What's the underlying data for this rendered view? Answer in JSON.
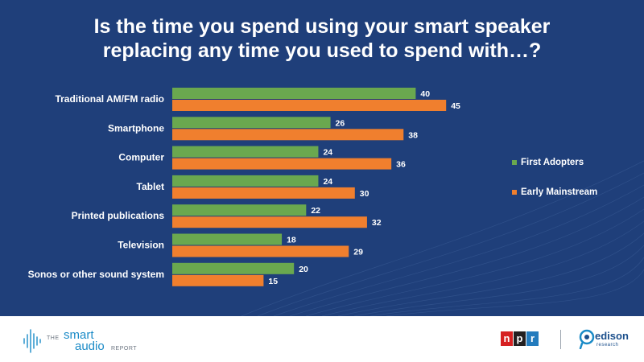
{
  "title": {
    "line1": "Is the time you spend using your smart speaker",
    "line2": "replacing any time you used to spend with…?"
  },
  "colors": {
    "background": "#1f3f7a",
    "first_adopters": "#6aa84f",
    "early_mainstream": "#f07f2e"
  },
  "legend": {
    "first_adopters": "First Adopters",
    "early_mainstream": "Early Mainstream"
  },
  "chart_data": {
    "type": "bar",
    "orientation": "horizontal",
    "categories": [
      "Traditional AM/FM radio",
      "Smartphone",
      "Computer",
      "Tablet",
      "Printed publications",
      "Television",
      "Sonos or other sound system"
    ],
    "series": [
      {
        "name": "First Adopters",
        "values": [
          40,
          26,
          24,
          24,
          22,
          18,
          20
        ]
      },
      {
        "name": "Early Mainstream",
        "values": [
          45,
          38,
          36,
          30,
          32,
          29,
          15
        ]
      }
    ],
    "xlim": [
      0,
      50
    ],
    "grid": false,
    "legend_position": "right"
  },
  "footer": {
    "sar_the": "THE",
    "sar_smart": "smart",
    "sar_audio": "audio",
    "sar_report": "REPORT",
    "npr_letters": [
      "n",
      "p",
      "r"
    ],
    "npr_colors": [
      "#d62021",
      "#231f20",
      "#237bbd"
    ],
    "edison_name": "edison",
    "edison_sub": "research"
  }
}
